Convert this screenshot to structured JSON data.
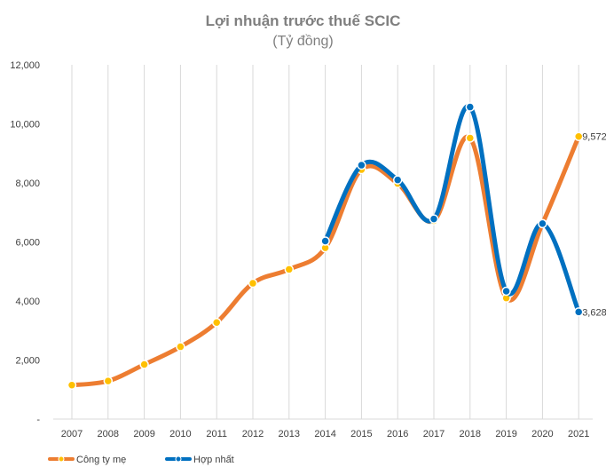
{
  "chart_data": {
    "type": "line",
    "title": "Lợi nhuận trước thuế SCIC",
    "subtitle": "(Tỷ đồng)",
    "xlabel": "",
    "ylabel": "",
    "categories": [
      "2007",
      "2008",
      "2009",
      "2010",
      "2011",
      "2012",
      "2013",
      "2014",
      "2015",
      "2016",
      "2017",
      "2018",
      "2019",
      "2020",
      "2021"
    ],
    "y_tick_labels": [
      "-",
      "2,000",
      "4,000",
      "6,000",
      "8,000",
      "10,000",
      "12,000"
    ],
    "ylim": [
      0,
      12000
    ],
    "grid": "vertical",
    "legend_position": "bottom-left",
    "series": [
      {
        "name": "Công ty mẹ",
        "color": "#ED7D31",
        "marker_color": "#FFC000",
        "x": [
          "2007",
          "2008",
          "2009",
          "2010",
          "2011",
          "2012",
          "2013",
          "2014",
          "2015",
          "2016",
          "2017",
          "2018",
          "2019",
          "2020",
          "2021"
        ],
        "values": [
          1150,
          1290,
          1850,
          2450,
          3270,
          4600,
          5070,
          5800,
          8450,
          7980,
          6720,
          9520,
          4100,
          6620,
          9572
        ],
        "labels": {
          "14": "9,572"
        }
      },
      {
        "name": "Hợp nhất",
        "color": "#0070C0",
        "marker_color": "#0070C0",
        "x": [
          "2014",
          "2015",
          "2016",
          "2017",
          "2018",
          "2019",
          "2020",
          "2021"
        ],
        "values": [
          6030,
          8600,
          8100,
          6780,
          10570,
          4330,
          6620,
          3628
        ],
        "labels": {
          "7": "3,628"
        }
      }
    ]
  }
}
